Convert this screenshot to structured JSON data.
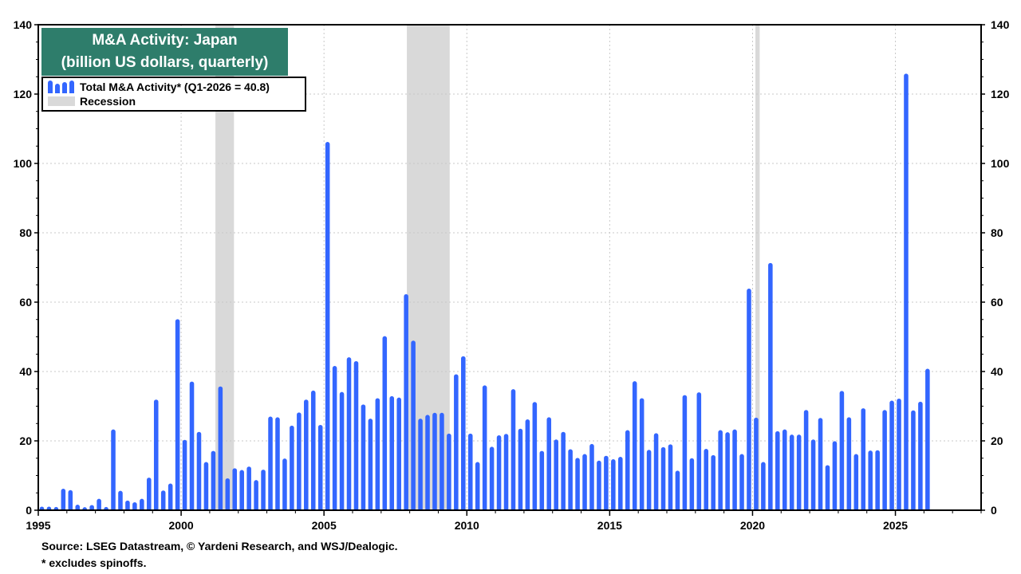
{
  "title_line1": "M&A Activity: Japan",
  "title_line2": "(billion US dollars, quarterly)",
  "legend": {
    "series": "Total M&A Activity* (Q1-2026 = 40.8)",
    "recession": "Recession"
  },
  "footer": {
    "source": "Source: LSEG Datastream, © Yardeni Research, and WSJ/Dealogic.",
    "note": "* excludes spinoffs."
  },
  "colors": {
    "bar": "#3366ff",
    "recession": "#d9d9d9",
    "title_bg": "#2e7d6b"
  },
  "chart_data": {
    "type": "bar",
    "title": "M&A Activity: Japan (billion US dollars, quarterly)",
    "xlabel": "",
    "ylabel": "",
    "x_start": "1995-Q1",
    "x_end": "2026-Q1",
    "xlim": [
      1995,
      2028
    ],
    "ylim": [
      0,
      140
    ],
    "x_ticks": [
      1995,
      2000,
      2005,
      2010,
      2015,
      2020,
      2025
    ],
    "y_ticks": [
      0,
      20,
      40,
      60,
      80,
      100,
      120,
      140
    ],
    "grid": true,
    "legend_position": "top-left",
    "recessions": [
      [
        2001.2,
        2001.85
      ],
      [
        2007.9,
        2009.4
      ],
      [
        2020.1,
        2020.25
      ]
    ],
    "series": [
      {
        "name": "Total M&A Activity*",
        "values": [
          0.8,
          0.8,
          0.6,
          6.2,
          5.8,
          1.6,
          0.5,
          1.5,
          3.3,
          0.6,
          23.3,
          5.6,
          2.8,
          2.3,
          3.3,
          9.4,
          31.9,
          5.7,
          7.7,
          55.1,
          20.3,
          37.1,
          22.6,
          13.9,
          17.1,
          35.7,
          9.2,
          12.1,
          11.6,
          12.6,
          8.7,
          11.7,
          27.0,
          26.8,
          14.9,
          24.4,
          28.2,
          31.9,
          34.5,
          24.6,
          106.2,
          41.6,
          34.1,
          44.1,
          43.0,
          30.5,
          26.4,
          32.3,
          50.2,
          32.9,
          32.5,
          62.3,
          48.9,
          26.4,
          27.5,
          28.1,
          28.1,
          22.1,
          39.2,
          44.4,
          22.1,
          13.9,
          36.0,
          18.3,
          21.6,
          22.0,
          34.9,
          23.5,
          26.2,
          31.2,
          17.1,
          26.8,
          20.4,
          22.6,
          17.6,
          15.1,
          16.2,
          19.1,
          14.3,
          15.7,
          14.7,
          15.4,
          23.1,
          37.2,
          32.3,
          17.4,
          22.2,
          18.2,
          19.0,
          11.4,
          33.2,
          15.0,
          34.0,
          17.7,
          15.9,
          23.1,
          22.5,
          23.3,
          16.2,
          63.9,
          26.7,
          13.9,
          71.3,
          22.8,
          23.3,
          21.8,
          21.8,
          28.9,
          20.4,
          26.6,
          13.0,
          19.9,
          34.4,
          26.8,
          16.2,
          29.4,
          17.2,
          17.3,
          28.9,
          31.6,
          32.2,
          125.9,
          28.8,
          31.3,
          40.8
        ]
      }
    ]
  }
}
